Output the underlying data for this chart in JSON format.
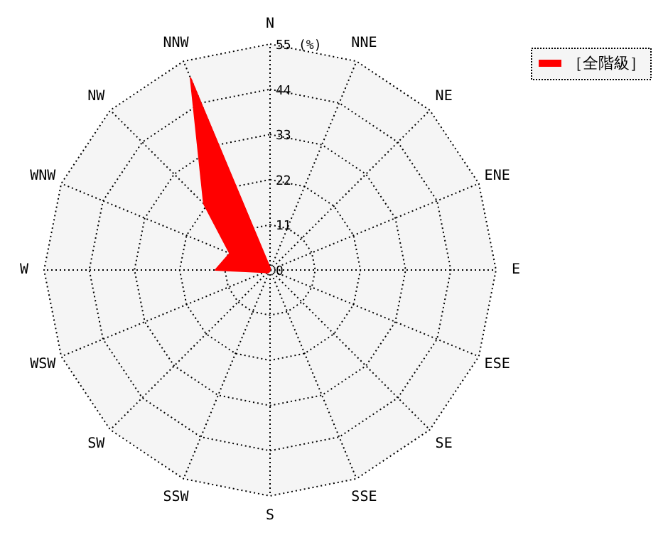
{
  "chart_data": {
    "type": "radar",
    "categories": [
      "N",
      "NNE",
      "NE",
      "ENE",
      "E",
      "ESE",
      "SE",
      "SSE",
      "S",
      "SSW",
      "SW",
      "WSW",
      "W",
      "WNW",
      "NW",
      "NNW"
    ],
    "series": [
      {
        "name": "［全階級］",
        "color": "#ff0000",
        "values": [
          0.5,
          0,
          0,
          0,
          0,
          0,
          0,
          0,
          0,
          0.5,
          1,
          1.5,
          13.3,
          10.6,
          22.8,
          50.6
        ]
      }
    ],
    "ylim": [
      0,
      55
    ],
    "yticks": [
      0,
      11,
      22,
      33,
      44,
      55
    ],
    "ylabel": "(%)",
    "legend": "top right",
    "grid": true,
    "line_style": "dotted"
  }
}
